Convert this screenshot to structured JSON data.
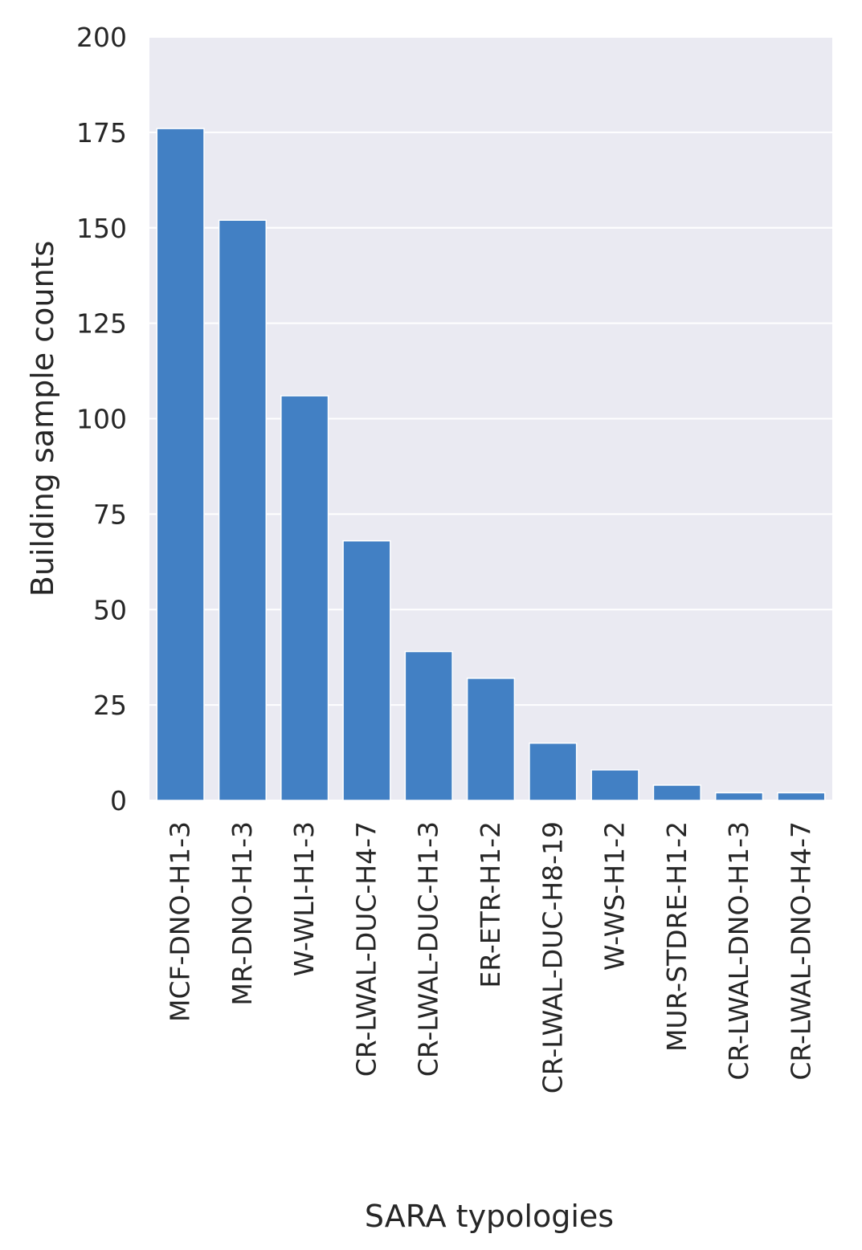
{
  "chart_data": {
    "type": "bar",
    "title": "",
    "xlabel": "SARA typologies",
    "ylabel": "Building sample counts",
    "categories": [
      "MCF-DNO-H1-3",
      "MR-DNO-H1-3",
      "W-WLI-H1-3",
      "CR-LWAL-DUC-H4-7",
      "CR-LWAL-DUC-H1-3",
      "ER-ETR-H1-2",
      "CR-LWAL-DUC-H8-19",
      "W-WS-H1-2",
      "MUR-STDRE-H1-2",
      "CR-LWAL-DNO-H1-3",
      "CR-LWAL-DNO-H4-7"
    ],
    "values": [
      176,
      152,
      106,
      68,
      39,
      32,
      15,
      8,
      4,
      2,
      2
    ],
    "ylim": [
      0,
      200
    ],
    "yticks": [
      0,
      25,
      50,
      75,
      100,
      125,
      150,
      175,
      200
    ],
    "grid": true,
    "legend": "none",
    "colors": {
      "bar": "#4280c4",
      "plot_background": "#eaeaf2",
      "grid": "#ffffff",
      "text": "#262626"
    }
  }
}
